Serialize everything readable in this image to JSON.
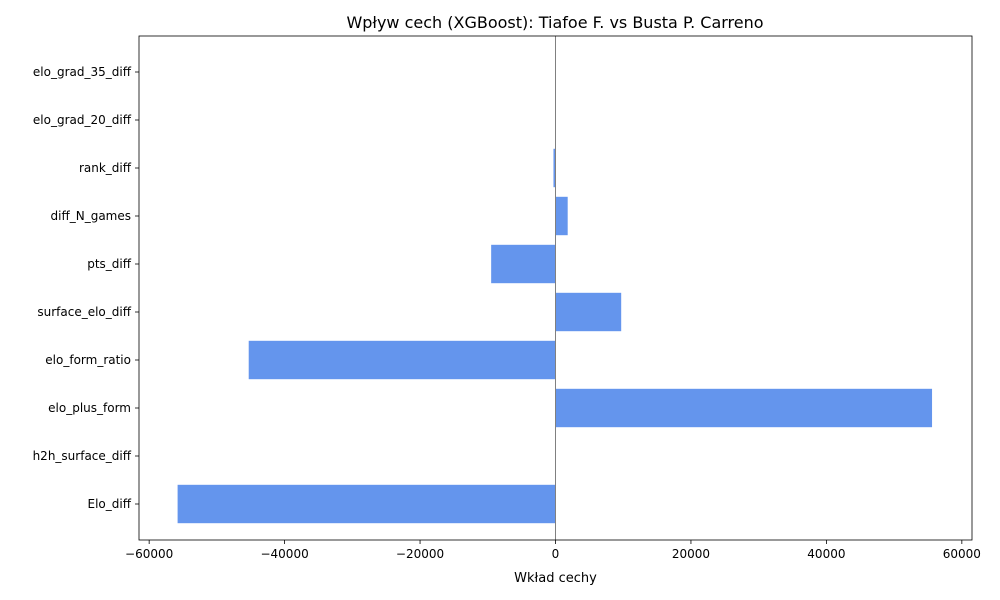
{
  "chart_data": {
    "type": "bar",
    "orientation": "horizontal",
    "title": "Wpływ cech (XGBoost): Tiafoe F. vs Busta P. Carreno",
    "xlabel": "Wkład cechy",
    "ylabel": "",
    "categories": [
      "Elo_diff",
      "h2h_surface_diff",
      "elo_plus_form",
      "elo_form_ratio",
      "surface_elo_diff",
      "pts_diff",
      "diff_N_games",
      "rank_diff",
      "elo_grad_20_diff",
      "elo_grad_35_diff"
    ],
    "values": [
      -55800,
      0,
      55600,
      -45300,
      9700,
      -9500,
      1800,
      -300,
      0,
      0
    ],
    "xlim": [
      -61500,
      61500
    ],
    "xticks": [
      -60000,
      -40000,
      -20000,
      0,
      20000,
      40000,
      60000
    ],
    "xtick_labels": [
      "−60000",
      "−40000",
      "−20000",
      "0",
      "20000",
      "40000",
      "60000"
    ],
    "bar_color": "#6495ED",
    "zero_line_color": "#808080",
    "grid": false,
    "legend": "none"
  }
}
